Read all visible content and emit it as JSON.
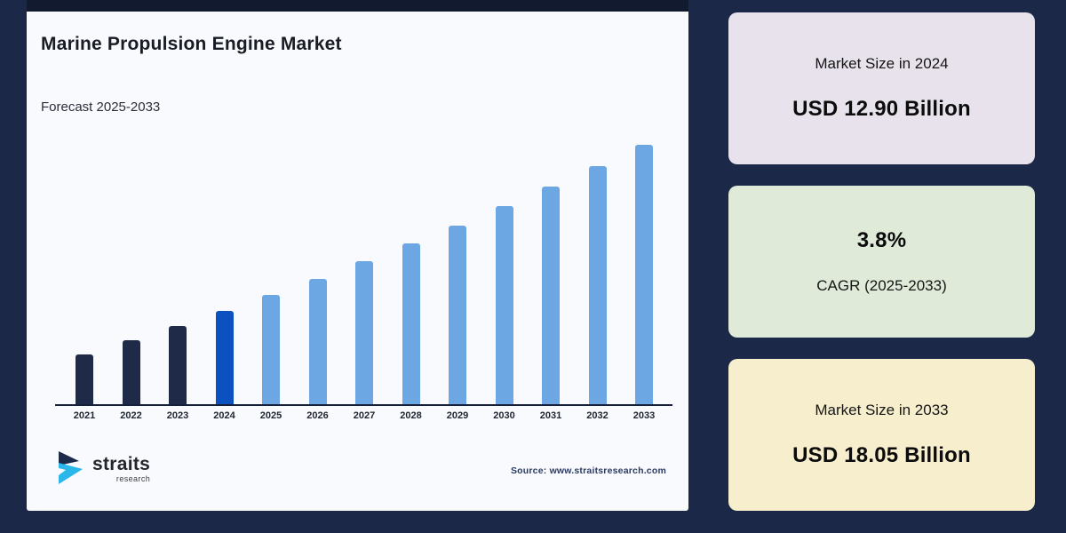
{
  "page": {
    "background_color": "#1c2848"
  },
  "chart_card": {
    "top_bar_color": "#121a30",
    "background_color": "#f8fafd",
    "title": "Marine Propulsion Engine Market",
    "subtitle": "Forecast 2025-2033",
    "source": "Source: www.straitsresearch.com"
  },
  "logo": {
    "text_main": "straits",
    "text_sub": "research",
    "icon_dark_color": "#1d2b4a",
    "icon_cyan_color": "#2bb7ea"
  },
  "chart_data": {
    "type": "bar",
    "title": "Marine Propulsion Engine Market",
    "xlabel": "",
    "ylabel": "",
    "unit": "USD Billion",
    "categories": [
      "2021",
      "2022",
      "2023",
      "2024",
      "2025",
      "2026",
      "2027",
      "2028",
      "2029",
      "2030",
      "2031",
      "2032",
      "2033"
    ],
    "values": [
      11.54,
      11.98,
      12.43,
      12.9,
      13.39,
      13.9,
      14.43,
      14.98,
      15.55,
      16.14,
      16.75,
      17.39,
      18.05
    ],
    "ylim": [
      10,
      18.6
    ],
    "grid": false,
    "legend_position": "none",
    "base_year": 2024,
    "colors": {
      "historical": "#1e2a47",
      "base_year": "#0b52c0",
      "forecast": "#6ca7e4"
    }
  },
  "stat_cards": [
    {
      "label": "Market Size in 2024",
      "value": "USD 12.90 Billion",
      "background_color": "#e7e2eb"
    },
    {
      "value": "3.8%",
      "label": "CAGR (2025-2033)",
      "background_color": "#e0ead8"
    },
    {
      "label": "Market Size in 2033",
      "value": "USD 18.05 Billion",
      "background_color": "#f6eecd"
    }
  ]
}
